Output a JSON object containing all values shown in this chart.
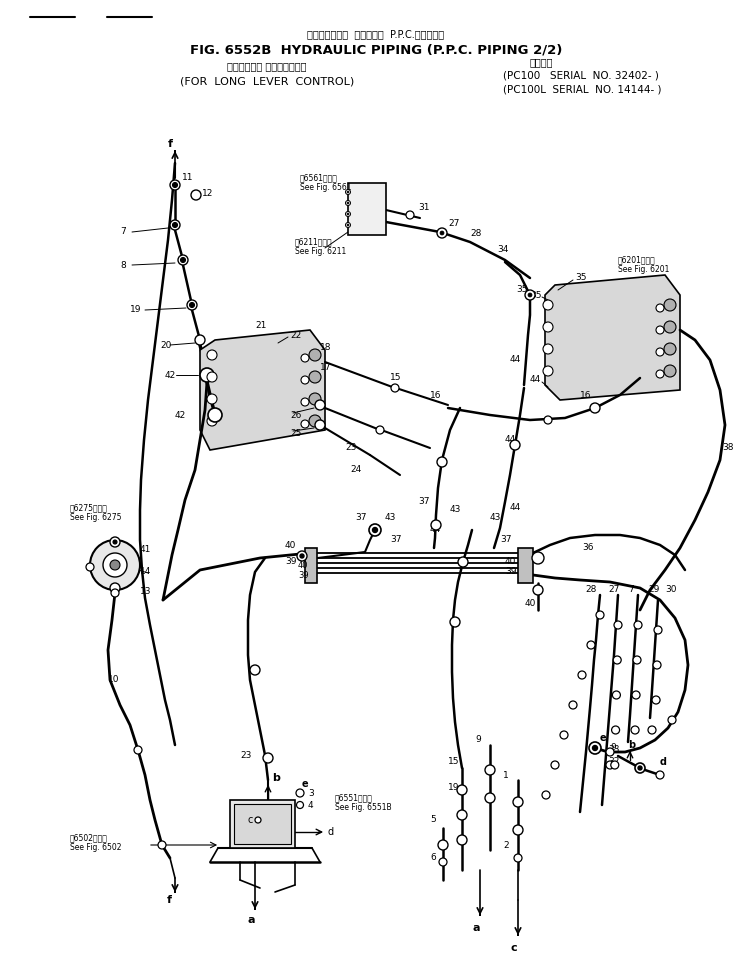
{
  "title_jp": "ハイドロリック  パイピング  P.P.C.パイピング",
  "title_main": "FIG. 6552B  HYDRAULIC PIPING (P.P.C. PIPING 2/2)",
  "title_sub_jp": "ロングレバー コントロール用",
  "title_sub": "(FOR  LONG  LEVER  CONTROL)",
  "serial_label": "適用号機",
  "serial1": "(PC100   SERIAL  NO. 32402- )",
  "serial2": "(PC100L  SERIAL  NO. 14144- )",
  "bg_color": "#ffffff",
  "lc": "#000000",
  "tc": "#000000",
  "fig_width": 7.53,
  "fig_height": 9.65
}
